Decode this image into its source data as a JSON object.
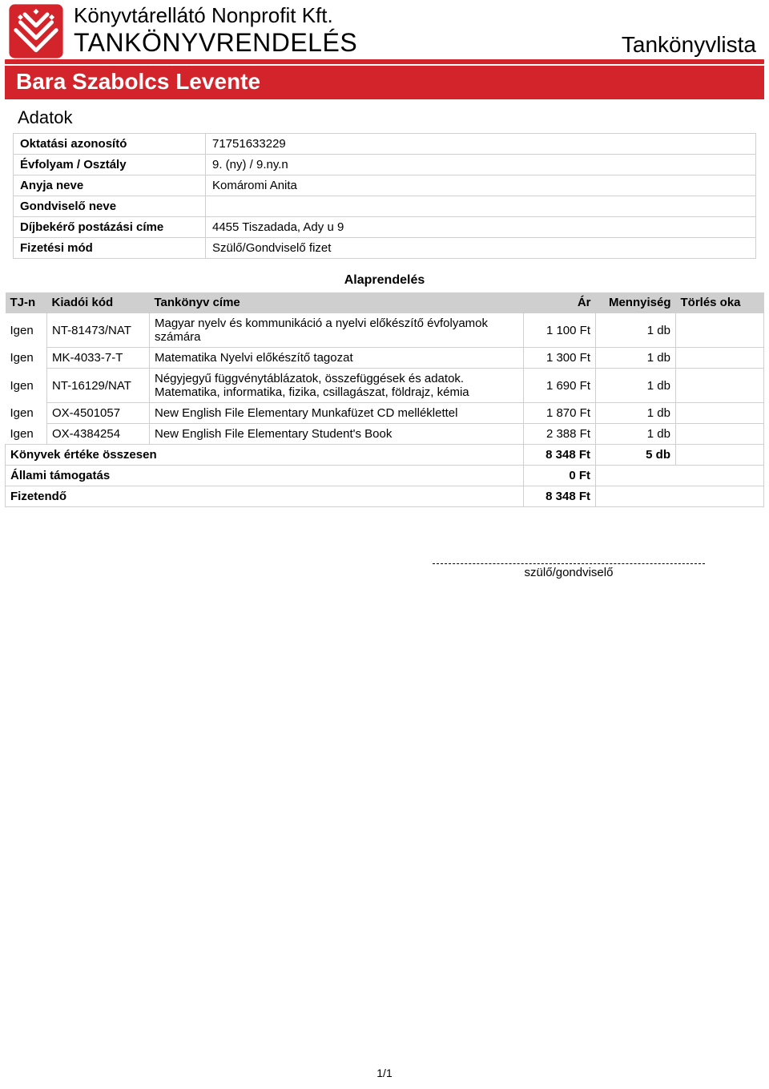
{
  "header": {
    "company": "Könyvtárellátó Nonprofit Kft.",
    "main_title": "TANKÖNYVRENDELÉS",
    "right_title": "Tankönyvlista"
  },
  "colors": {
    "brand_red": "#d3242b",
    "header_grey": "#cfcfcf",
    "border_grey": "#cfcfcf",
    "text": "#000000",
    "background": "#ffffff"
  },
  "student_name": "Bara Szabolcs Levente",
  "section_title": "Adatok",
  "info": {
    "labels": {
      "oktatasi_azonosito": "Oktatási azonosító",
      "evfolyam_osztaly": "Évfolyam / Osztály",
      "anyja_neve": "Anyja neve",
      "gondviselo_neve": "Gondviselő neve",
      "dijbekero_postazasi_cime": "Díjbekérő postázási címe",
      "fizetesi_mod": "Fizetési mód"
    },
    "values": {
      "oktatasi_azonosito": "71751633229",
      "evfolyam_osztaly": "9. (ny) / 9.ny.n",
      "anyja_neve": "Komáromi Anita",
      "gondviselo_neve": "",
      "dijbekero_postazasi_cime": "4455 Tiszadada, Ady u 9",
      "fizetesi_mod": "Szülő/Gondviselő fizet"
    }
  },
  "order_section_title": "Alaprendelés",
  "order_headers": {
    "tj": "TJ-n",
    "code": "Kiadói kód",
    "title": "Tankönyv címe",
    "price": "Ár",
    "qty": "Mennyiség",
    "del": "Törlés oka"
  },
  "order_rows": [
    {
      "tj": "Igen",
      "code": "NT-81473/NAT",
      "title": "Magyar nyelv és kommunikáció a nyelvi előkészítő évfolyamok számára",
      "price": "1 100 Ft",
      "qty": "1 db",
      "del": ""
    },
    {
      "tj": "Igen",
      "code": "MK-4033-7-T",
      "title": "Matematika Nyelvi előkészítő tagozat",
      "price": "1 300 Ft",
      "qty": "1 db",
      "del": ""
    },
    {
      "tj": "Igen",
      "code": "NT-16129/NAT",
      "title": "Négyjegyű függvénytáblázatok, összefüggések és adatok. Matematika, informatika, fizika, csillagászat, földrajz, kémia",
      "price": "1 690 Ft",
      "qty": "1 db",
      "del": ""
    },
    {
      "tj": "Igen",
      "code": "OX-4501057",
      "title": "New English File Elementary Munkafüzet CD melléklettel",
      "price": "1 870 Ft",
      "qty": "1 db",
      "del": ""
    },
    {
      "tj": "Igen",
      "code": "OX-4384254",
      "title": "New English File Elementary Student's Book",
      "price": "2 388 Ft",
      "qty": "1 db",
      "del": ""
    }
  ],
  "summary": {
    "total_label": "Könyvek értéke összesen",
    "total_price": "8 348 Ft",
    "total_qty": "5 db",
    "support_label": "Állami támogatás",
    "support_value": "0 Ft",
    "payable_label": "Fizetendő",
    "payable_value": "8 348 Ft"
  },
  "signature_label": "szülő/gondviselő",
  "footer": "1/1"
}
